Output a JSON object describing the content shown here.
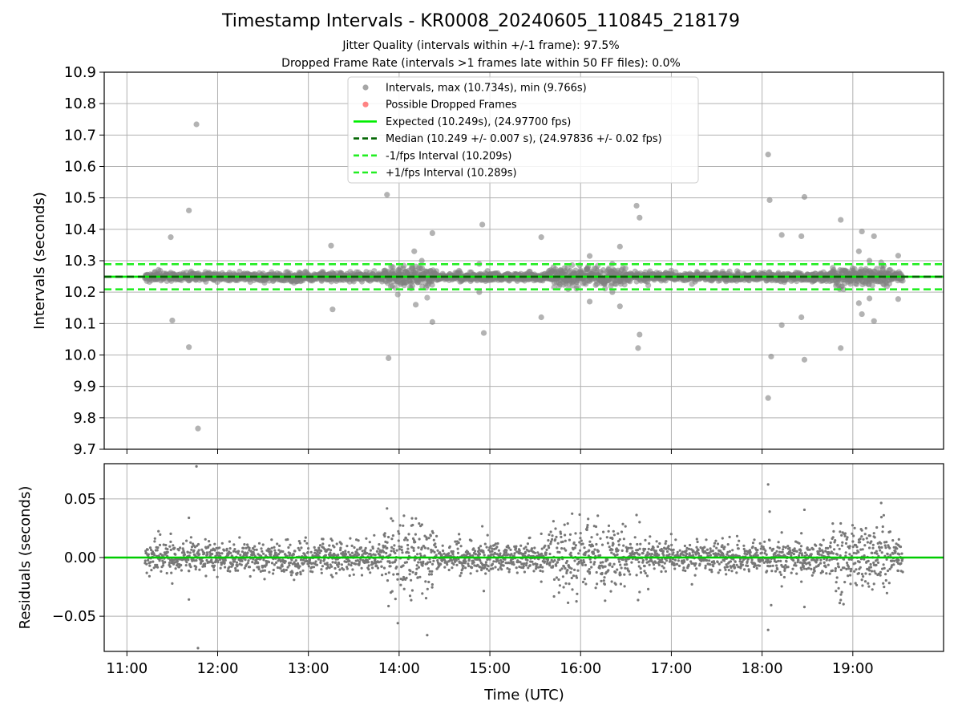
{
  "chart_data": [
    {
      "type": "scatter",
      "title": "Timestamp Intervals - KR0008_20240605_110845_218179",
      "subtitle_lines": [
        "Jitter Quality (intervals within +/-1 frame): 97.5%",
        "Dropped Frame Rate (intervals >1 frames late within 50 FF files): 0.0%"
      ],
      "ylabel": "Intervals (seconds)",
      "xlim": [
        "10:45",
        "20:00"
      ],
      "ylim": [
        9.7,
        10.9
      ],
      "yticks": [
        "9.7",
        "9.8",
        "9.9",
        "10.0",
        "10.1",
        "10.2",
        "10.3",
        "10.4",
        "10.5",
        "10.6",
        "10.7",
        "10.8",
        "10.9"
      ],
      "grid": true,
      "legend_position": "top-center",
      "series": [
        {
          "name": "Intervals, max (10.734s), min (9.766s)",
          "kind": "points",
          "color": "#808080",
          "baseline": 10.2485,
          "time_range": [
            "11:12",
            "19:33"
          ],
          "outliers": [
            {
              "t": "11:29",
              "y": 10.375
            },
            {
              "t": "11:30",
              "y": 10.11
            },
            {
              "t": "11:41",
              "y": 10.46
            },
            {
              "t": "11:41",
              "y": 10.025
            },
            {
              "t": "11:46",
              "y": 10.734
            },
            {
              "t": "11:47",
              "y": 9.766
            },
            {
              "t": "13:15",
              "y": 10.348
            },
            {
              "t": "13:16",
              "y": 10.145
            },
            {
              "t": "13:52",
              "y": 10.51
            },
            {
              "t": "13:53",
              "y": 9.99
            },
            {
              "t": "14:10",
              "y": 10.33
            },
            {
              "t": "14:11",
              "y": 10.16
            },
            {
              "t": "14:15",
              "y": 10.3
            },
            {
              "t": "14:22",
              "y": 10.388
            },
            {
              "t": "14:22",
              "y": 10.105
            },
            {
              "t": "14:55",
              "y": 10.415
            },
            {
              "t": "14:56",
              "y": 10.07
            },
            {
              "t": "14:53",
              "y": 10.29
            },
            {
              "t": "14:53",
              "y": 10.2
            },
            {
              "t": "15:34",
              "y": 10.375
            },
            {
              "t": "15:34",
              "y": 10.12
            },
            {
              "t": "16:06",
              "y": 10.315
            },
            {
              "t": "16:06",
              "y": 10.17
            },
            {
              "t": "16:21",
              "y": 10.29
            },
            {
              "t": "16:21",
              "y": 10.2
            },
            {
              "t": "16:26",
              "y": 10.345
            },
            {
              "t": "16:26",
              "y": 10.155
            },
            {
              "t": "16:37",
              "y": 10.475
            },
            {
              "t": "16:38",
              "y": 10.022
            },
            {
              "t": "16:39",
              "y": 10.437
            },
            {
              "t": "16:39",
              "y": 10.065
            },
            {
              "t": "18:04",
              "y": 10.638
            },
            {
              "t": "18:05",
              "y": 10.493
            },
            {
              "t": "18:04",
              "y": 9.863
            },
            {
              "t": "18:06",
              "y": 9.995
            },
            {
              "t": "18:13",
              "y": 10.382
            },
            {
              "t": "18:13",
              "y": 10.095
            },
            {
              "t": "18:26",
              "y": 10.378
            },
            {
              "t": "18:26",
              "y": 10.12
            },
            {
              "t": "18:28",
              "y": 10.503
            },
            {
              "t": "18:28",
              "y": 9.985
            },
            {
              "t": "18:52",
              "y": 10.43
            },
            {
              "t": "18:52",
              "y": 10.022
            },
            {
              "t": "19:04",
              "y": 10.33
            },
            {
              "t": "19:04",
              "y": 10.165
            },
            {
              "t": "19:06",
              "y": 10.393
            },
            {
              "t": "19:06",
              "y": 10.13
            },
            {
              "t": "19:11",
              "y": 10.3
            },
            {
              "t": "19:11",
              "y": 10.18
            },
            {
              "t": "19:14",
              "y": 10.378
            },
            {
              "t": "19:14",
              "y": 10.108
            },
            {
              "t": "19:30",
              "y": 10.316
            },
            {
              "t": "19:30",
              "y": 10.178
            }
          ]
        },
        {
          "name": "Possible Dropped Frames",
          "kind": "points",
          "color": "#ff5050",
          "values": []
        },
        {
          "name": "Expected (10.249s), (24.97700 fps)",
          "kind": "hline",
          "y": 10.249,
          "color": "#00ee00",
          "style": "solid"
        },
        {
          "name": "Median (10.249 +/- 0.007 s), (24.97836 +/- 0.02 fps)",
          "kind": "hline",
          "y": 10.249,
          "color": "#006400",
          "style": "dashed"
        },
        {
          "name": "-1/fps Interval (10.209s)",
          "kind": "hline",
          "y": 10.209,
          "color": "#22ee22",
          "style": "dashed"
        },
        {
          "name": "+1/fps Interval (10.289s)",
          "kind": "hline",
          "y": 10.289,
          "color": "#22ee22",
          "style": "dashed"
        }
      ]
    },
    {
      "type": "scatter",
      "xlabel": "Time (UTC)",
      "ylabel": "Residuals (seconds)",
      "xlim": [
        "10:45",
        "20:00"
      ],
      "ylim": [
        -0.08,
        0.08
      ],
      "yticks": [
        {
          "value": 0.05,
          "label": "0.05"
        },
        {
          "value": 0.0,
          "label": "0.00"
        },
        {
          "value": -0.05,
          "label": "−0.05"
        }
      ],
      "xticks": [
        "11:00",
        "12:00",
        "13:00",
        "14:00",
        "15:00",
        "16:00",
        "17:00",
        "18:00",
        "19:00"
      ],
      "grid": true,
      "series": [
        {
          "kind": "points",
          "color": "#777777",
          "time_range": [
            "11:12",
            "19:33"
          ],
          "typical_range": [
            -0.02,
            0.02
          ]
        },
        {
          "kind": "hline",
          "y": 0.0,
          "color": "#00cc00",
          "style": "solid"
        }
      ]
    }
  ]
}
